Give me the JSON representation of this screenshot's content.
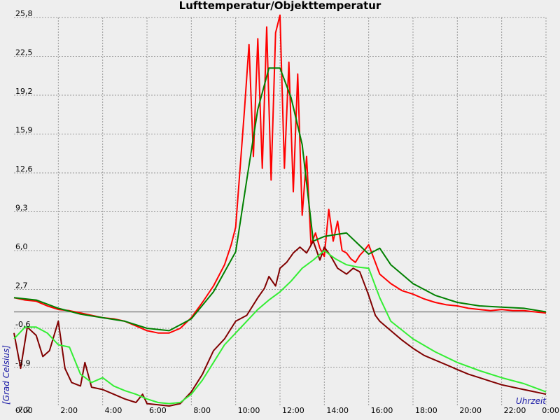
{
  "chart_data": {
    "type": "line",
    "title": "Lufttemperatur/Objekttemperatur",
    "xlabel": "Uhrzeit",
    "ylabel": "[Grad Celsius]",
    "x_unit": "hours",
    "xlim": [
      0,
      24
    ],
    "ylim": [
      -7.2,
      25.8
    ],
    "y_ticks": [
      -7.2,
      -3.9,
      -0.6,
      2.7,
      6.0,
      9.3,
      12.6,
      15.9,
      19.2,
      22.5,
      25.8
    ],
    "y_tick_labels": [
      "-7,2",
      "-3,9",
      "-0,6",
      "2,7",
      "6,0",
      "9,3",
      "12,6",
      "15,9",
      "19,2",
      "22,5",
      "25,8"
    ],
    "x_ticks": [
      0,
      2,
      4,
      6,
      8,
      10,
      12,
      14,
      16,
      18,
      20,
      22,
      24
    ],
    "x_tick_labels": [
      "0:00",
      "2:00",
      "4:00",
      "6:00",
      "8:00",
      "10:00",
      "12:00",
      "14:00",
      "16:00",
      "18:00",
      "20:00",
      "22:00",
      "0:00"
    ],
    "reference_line_y": 0.8,
    "grid": true,
    "series": [
      {
        "color": "#ff0000",
        "x": [
          0,
          0.5,
          1,
          1.5,
          2,
          2.5,
          3,
          3.5,
          4,
          4.5,
          5,
          5.5,
          6,
          6.5,
          7,
          7.5,
          8,
          8.5,
          9,
          9.5,
          9.8,
          10,
          10.2,
          10.4,
          10.6,
          10.8,
          11,
          11.2,
          11.4,
          11.6,
          11.8,
          12,
          12.2,
          12.4,
          12.6,
          12.8,
          13,
          13.2,
          13.4,
          13.6,
          13.8,
          14,
          14.2,
          14.4,
          14.6,
          14.8,
          15,
          15.2,
          15.4,
          15.6,
          15.8,
          16,
          16.2,
          16.5,
          17,
          17.5,
          18,
          18.5,
          19,
          19.5,
          20,
          20.5,
          21,
          21.5,
          22,
          22.5,
          23,
          23.5,
          24
        ],
        "y": [
          2.0,
          1.8,
          1.7,
          1.3,
          1.0,
          0.9,
          0.7,
          0.5,
          0.3,
          0.2,
          0.0,
          -0.4,
          -0.8,
          -1.0,
          -1.0,
          -0.6,
          0.3,
          1.6,
          3.0,
          4.8,
          6.5,
          8.0,
          13.0,
          18.0,
          23.5,
          14.0,
          24.0,
          13.0,
          25.0,
          12.0,
          24.5,
          26.0,
          13.0,
          22.0,
          11.0,
          21.0,
          9.0,
          14.0,
          6.5,
          7.5,
          6.2,
          5.5,
          9.5,
          6.8,
          8.5,
          6.0,
          5.8,
          5.3,
          5.0,
          5.6,
          6.0,
          6.5,
          5.5,
          4.0,
          3.2,
          2.6,
          2.3,
          1.9,
          1.6,
          1.4,
          1.3,
          1.1,
          1.0,
          0.9,
          1.0,
          0.9,
          0.9,
          0.8,
          0.7
        ]
      },
      {
        "color": "#008000",
        "x": [
          0,
          1,
          2,
          3,
          4,
          5,
          6,
          7,
          8,
          9,
          10,
          10.5,
          11,
          11.5,
          12,
          12.5,
          13,
          13.5,
          14,
          15,
          16,
          16.5,
          17,
          18,
          19,
          20,
          21,
          22,
          23,
          24
        ],
        "y": [
          2.0,
          1.8,
          1.1,
          0.6,
          0.3,
          0.0,
          -0.6,
          -0.8,
          0.2,
          2.5,
          5.9,
          12.0,
          18.0,
          21.5,
          21.5,
          19.0,
          15.0,
          6.8,
          7.2,
          7.5,
          5.7,
          6.2,
          4.8,
          3.2,
          2.2,
          1.6,
          1.3,
          1.2,
          1.1,
          0.8
        ]
      },
      {
        "color": "#800000",
        "x": [
          0,
          0.3,
          0.6,
          1,
          1.3,
          1.6,
          2,
          2.3,
          2.6,
          3,
          3.2,
          3.5,
          4,
          4.5,
          5,
          5.5,
          5.8,
          6,
          6.5,
          7,
          7.5,
          8,
          8.5,
          9,
          9.5,
          10,
          10.5,
          11,
          11.3,
          11.5,
          11.8,
          12,
          12.3,
          12.6,
          12.9,
          13.2,
          13.5,
          13.8,
          14,
          14.3,
          14.6,
          15,
          15.3,
          15.6,
          16,
          16.3,
          16.5,
          17,
          17.5,
          18,
          18.5,
          19,
          19.5,
          20,
          20.5,
          21,
          21.5,
          22,
          22.5,
          23,
          23.5,
          24
        ],
        "y": [
          -1.0,
          -4.0,
          -0.5,
          -1.2,
          -3.0,
          -2.5,
          0.0,
          -4.0,
          -5.2,
          -5.5,
          -3.5,
          -5.6,
          -5.8,
          -6.2,
          -6.6,
          -6.9,
          -6.2,
          -7.0,
          -7.1,
          -7.2,
          -7.0,
          -6.0,
          -4.5,
          -2.5,
          -1.5,
          0.0,
          0.5,
          2.0,
          2.8,
          3.8,
          3.0,
          4.5,
          5.0,
          5.8,
          6.3,
          5.8,
          6.8,
          5.2,
          6.3,
          5.5,
          4.5,
          4.0,
          4.5,
          4.2,
          2.2,
          0.5,
          0.0,
          -0.8,
          -1.6,
          -2.3,
          -2.9,
          -3.3,
          -3.7,
          -4.1,
          -4.5,
          -4.8,
          -5.1,
          -5.4,
          -5.6,
          -5.8,
          -6.0,
          -6.2
        ]
      },
      {
        "color": "#33ee33",
        "x": [
          0,
          0.5,
          1,
          1.5,
          2,
          2.5,
          3,
          3.5,
          4,
          4.5,
          5,
          5.5,
          6,
          6.5,
          7,
          7.5,
          8,
          8.5,
          9,
          9.5,
          10,
          10.5,
          11,
          11.5,
          12,
          12.5,
          13,
          13.5,
          14,
          14.5,
          15,
          15.5,
          16,
          16.5,
          17,
          18,
          19,
          20,
          21,
          22,
          23,
          24
        ],
        "y": [
          -1.5,
          -0.5,
          -0.5,
          -1.0,
          -2.0,
          -2.2,
          -4.5,
          -5.2,
          -4.8,
          -5.5,
          -5.9,
          -6.2,
          -6.6,
          -6.9,
          -7.0,
          -6.9,
          -6.2,
          -5.0,
          -3.5,
          -2.0,
          -1.0,
          0.0,
          1.0,
          1.8,
          2.5,
          3.4,
          4.5,
          5.2,
          6.0,
          5.3,
          4.8,
          4.6,
          4.5,
          2.0,
          0.0,
          -1.5,
          -2.6,
          -3.5,
          -4.2,
          -4.8,
          -5.3,
          -6.0
        ]
      }
    ]
  }
}
